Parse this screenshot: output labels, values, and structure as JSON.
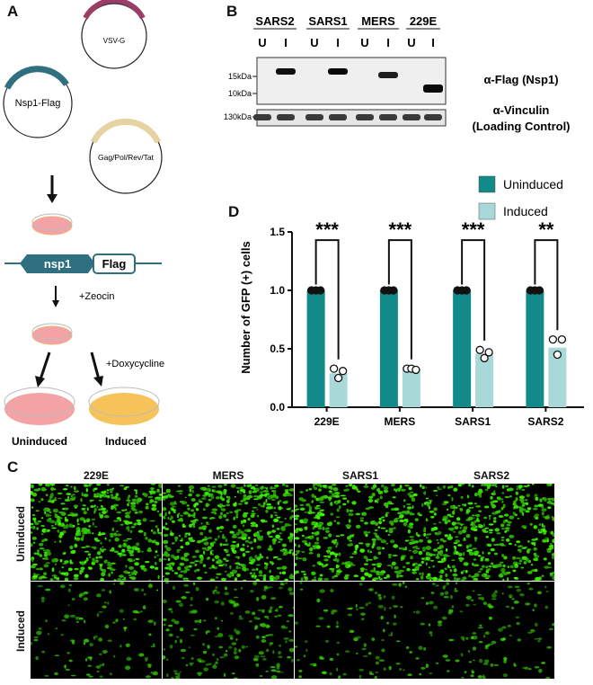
{
  "panel_a": {
    "label": "A",
    "plasmids": [
      "VSV-G",
      "Nsp1-Flag",
      "Gag/Pol/Rev/Tat"
    ],
    "construct": {
      "gene": "nsp1",
      "tag": "Flag"
    },
    "steps": [
      "+Zeocin",
      "+Doxycycline"
    ],
    "outcomes": [
      "Uninduced",
      "Induced"
    ],
    "colors": {
      "vsvg": "#9c3d66",
      "nsp1flag": "#2f6f80",
      "gagpol": "#e5d3a1",
      "construct": "#2f6f80",
      "dish_pink": "#f3a3a6",
      "dish_yellow": "#f6c35a"
    }
  },
  "panel_b": {
    "label": "B",
    "groups": [
      "SARS2",
      "SARS1",
      "MERS",
      "229E"
    ],
    "lanes": [
      "U",
      "I",
      "U",
      "I",
      "U",
      "I",
      "U",
      "I"
    ],
    "markers": [
      "15kDa",
      "10kDa",
      "130kDa"
    ],
    "blots": [
      {
        "title": "α-Flag (Nsp1)",
        "band_intensity": [
          0,
          0.9,
          0,
          1.0,
          0,
          0.6,
          0,
          1.0
        ]
      },
      {
        "title": "α-Vinculin",
        "subtitle": "(Loading Control)"
      }
    ]
  },
  "panel_c": {
    "label": "C",
    "columns": [
      "229E",
      "MERS",
      "SARS1",
      "SARS2"
    ],
    "rows": [
      "Uninduced",
      "Induced"
    ],
    "cell_density": [
      [
        0.55,
        0.6,
        0.5,
        0.55
      ],
      [
        0.12,
        0.22,
        0.12,
        0.15
      ]
    ]
  },
  "panel_d": {
    "label": "D",
    "chart_data": {
      "type": "bar",
      "categories": [
        "229E",
        "MERS",
        "SARS1",
        "SARS2"
      ],
      "series": [
        {
          "name": "Uninduced",
          "values": [
            1.0,
            1.0,
            1.0,
            1.0
          ],
          "points": [
            [
              1.0,
              1.0,
              1.0
            ],
            [
              1.0,
              1.0,
              1.0
            ],
            [
              1.0,
              1.0,
              1.0
            ],
            [
              1.0,
              1.0,
              1.0
            ]
          ],
          "color": "#138a8a"
        },
        {
          "name": "Induced",
          "values": [
            0.29,
            0.33,
            0.46,
            0.51
          ],
          "points": [
            [
              0.33,
              0.25,
              0.31
            ],
            [
              0.33,
              0.33,
              0.32
            ],
            [
              0.49,
              0.42,
              0.47
            ],
            [
              0.58,
              0.45,
              0.58
            ]
          ],
          "color": "#a9d8d8"
        }
      ],
      "significance": [
        "***",
        "***",
        "***",
        "**"
      ],
      "ylabel": "Number of GFP (+) cells",
      "ylim": [
        0,
        1.5
      ],
      "yticks": [
        "0.0",
        "0.5",
        "1.0",
        "1.5"
      ],
      "legend_position": "top-right"
    }
  }
}
